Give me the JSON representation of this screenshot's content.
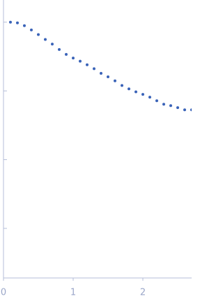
{
  "chart_data": {
    "type": "scatter",
    "x": [
      0.1,
      0.2,
      0.3,
      0.4,
      0.5,
      0.6,
      0.7,
      0.8,
      0.9,
      1.0,
      1.1,
      1.2,
      1.3,
      1.4,
      1.5,
      1.6,
      1.7,
      1.8,
      1.9,
      2.0,
      2.1,
      2.2,
      2.3,
      2.4,
      2.5,
      2.6,
      2.7
    ],
    "series": [
      {
        "color": "#3a63b8",
        "values": [
          1,
          0.977,
          0.89,
          0.77,
          0.66,
          0.56,
          0.48,
          0.4,
          0.34,
          0.3,
          0.27,
          0.24,
          0.21,
          0.18,
          0.16,
          0.14,
          0.12,
          0.107,
          0.097,
          0.089,
          0.081,
          0.072,
          0.064,
          0.061,
          0.057,
          0.053,
          0.053
        ]
      }
    ],
    "xlim": [
      0,
      2.7
    ],
    "xticks": [
      0,
      1,
      2
    ],
    "ylim": [
      0.00019,
      2.1
    ],
    "yticks": [
      0.001,
      0.01,
      0.1,
      1
    ],
    "log_y": true
  }
}
